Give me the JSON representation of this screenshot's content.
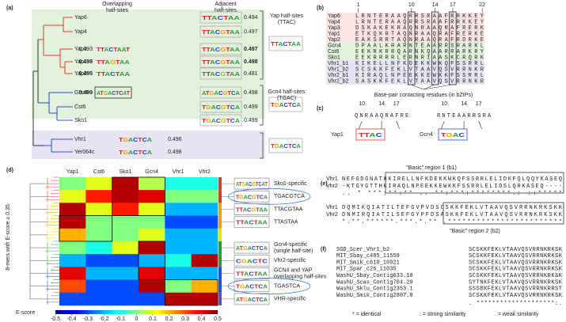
{
  "panel_a": {
    "label": "(a)",
    "headers": [
      [
        "Overlapping",
        "half-sites"
      ],
      [
        "Adjacent",
        "half-sites"
      ]
    ],
    "rows": [
      {
        "name": "Yap6",
        "adjacent_logo": "TTACTAA",
        "adjacent_score": 0.494
      },
      {
        "name": "Yap4",
        "adjacent_logo": "TTACGTAA",
        "adjacent_score": 0.497
      },
      {
        "name": "Yap3",
        "overlap_logo": "TTACTAAT",
        "overlap_score": 0.493,
        "adjacent_logo": "TTACGTAA",
        "adjacent_score": 0.497
      },
      {
        "name": "Yap1",
        "overlap_logo": "TTAGTAA",
        "overlap_score": 0.498,
        "adjacent_logo": "TTACGTAA",
        "adjacent_score": 0.498
      },
      {
        "name": "Yap2",
        "overlap_logo": "TTACTAA",
        "overlap_score": 0.495,
        "adjacent_logo": "TTACGTAA",
        "adjacent_score": 0.481
      },
      {
        "name": "Gcn4",
        "overlap_logo": "ATGACTCAT",
        "overlap_score": 0.499,
        "adjacent_logo": "ATGACGTCA",
        "adjacent_score": 0.498
      },
      {
        "name": "Cst6",
        "adjacent_logo": "TGACGTCA",
        "adjacent_score": 0.499
      },
      {
        "name": "Sko1",
        "adjacent_logo": "TGACGTCA",
        "adjacent_score": 0.499
      },
      {
        "name": "Vhr1",
        "overlap_logo": "TGACTCA",
        "overlap_score": 0.496
      },
      {
        "name": "Yer064c",
        "overlap_logo": "TGACTCA",
        "overlap_score": 0.498
      }
    ],
    "half_sites": [
      {
        "lines": [
          "Yap half-sites",
          "(TTAC)"
        ],
        "logo": "TTACTAA"
      },
      {
        "lines": [
          "Gcn4 half-sites",
          "(TGAC)"
        ],
        "logo": "TGACTCA"
      },
      {
        "logo": "TGACTCA"
      }
    ]
  },
  "panel_b": {
    "label": "(b)",
    "positions": [
      "1",
      "10",
      "14",
      "17",
      "22"
    ],
    "rows": [
      {
        "name": "Yap6",
        "seq": "LRNTERAAQRRSRAAFRRKKEY"
      },
      {
        "name": "Yap4",
        "seq": "LRNTERAAQRRSRAAFRRKKEY"
      },
      {
        "name": "Yap3",
        "seq": "DSKAKEKRAQNRAAQRAFRERK"
      },
      {
        "name": "Yap1",
        "seq": "ETKQKRTAQNRAAQRAFRERKE"
      },
      {
        "name": "Yap2",
        "seq": "EAKSRRTAQNRAAQRAFRDRKE"
      },
      {
        "name": "Gcn4",
        "seq": "DPAALKRARNTEAARRSRARKL"
      },
      {
        "name": "Cst6",
        "seq": "EEKRKRRQARNKQAARRARKRY"
      },
      {
        "name": "Sko1",
        "seq": "EEKRRRRLERNRIAASKCRQRK"
      },
      {
        "name": "Vhr1_b1",
        "seq": "KIKELLNFKDEKKWKQFSSRRL"
      },
      {
        "name": "Vhr1_b2",
        "seq": "SCSKKFEKLVTAAVQSVRRNKR"
      },
      {
        "name": "Vhr2_b1",
        "seq": "KIRAQLNPEEKKEWKKFSSRRL"
      },
      {
        "name": "Vhr2_b2",
        "seq": "SASKKFEKLVTAAVQSVRRNKR"
      }
    ],
    "caption": "Base-pair contacting residues (in bZIPs)"
  },
  "panel_c": {
    "label": "(c)",
    "proteins": [
      {
        "name": "Yap1",
        "positions": [
          "10",
          "14",
          "17"
        ],
        "seq": "QNRAAQRAFRE",
        "site": "TTAC"
      },
      {
        "name": "Gcn4",
        "positions": [
          "10",
          "14",
          "17"
        ],
        "seq": "RNTEAARRSRA",
        "site": "TGAC"
      }
    ]
  },
  "panel_d": {
    "label": "(d)",
    "y_label": "8-mers with E-score ≥ 0.35",
    "columns": [
      "Yap1",
      "Cst6",
      "Sko1",
      "Gcn4",
      "Vhr1",
      "Vhr2"
    ],
    "rows": [
      {
        "values": [
          0.0,
          0.1,
          0.45,
          0.05,
          -0.1,
          -0.1
        ],
        "label": [
          "Sko1-specific"
        ],
        "logo": "ATGACGTCAT"
      },
      {
        "values": [
          0.1,
          0.35,
          0.45,
          0.4,
          0.0,
          0.0
        ],
        "label": [
          "TGACGTCA"
        ],
        "label_color": "#1f3fd0",
        "logo": "TGACGTCA"
      },
      {
        "values": [
          0.45,
          0.1,
          0.35,
          0.1,
          -0.2,
          -0.2
        ],
        "label": [
          "TTACGTAA"
        ],
        "label_color": "#e02020",
        "logo": "TTACGTAA"
      },
      {
        "values": [
          0.45,
          0.0,
          0.0,
          0.0,
          -0.3,
          -0.3
        ],
        "label": [
          "TTASTAA"
        ],
        "label_color": "#e02020",
        "logo": "TTACTAA"
      },
      {
        "values": [
          0.2,
          0.0,
          0.0,
          0.1,
          -0.2,
          -0.2
        ]
      },
      {
        "values": [
          0.0,
          -0.1,
          0.1,
          0.45,
          -0.2,
          -0.2
        ],
        "label": [
          "Gcn4-specific",
          "(single half-site)"
        ],
        "logo": "ATGACTCA"
      },
      {
        "values": [
          -0.2,
          -0.3,
          -0.3,
          -0.2,
          -0.1,
          0.45
        ],
        "label": [
          "Vhr2-specific"
        ],
        "logo": "CGACTC"
      },
      {
        "values": [
          0.4,
          -0.2,
          -0.2,
          0.4,
          -0.2,
          -0.2
        ],
        "label": [
          "GCN4 and YAP",
          "overlapping half-sites"
        ],
        "label_color": "#1f3fd0",
        "logo": "TTACTAA"
      },
      {
        "values": [
          0.3,
          -0.3,
          -0.3,
          0.45,
          0.0,
          0.2
        ],
        "label": [
          "TGASTCA"
        ],
        "label_color": "#1f3fd0",
        "logo": "TGACTCA"
      },
      {
        "values": [
          -0.3,
          -0.3,
          -0.3,
          -0.3,
          0.45,
          0.45
        ],
        "label": [
          "VHR-specific"
        ],
        "logo": "ATGACTCA"
      }
    ],
    "colorbar_label": "E-score",
    "clim": [
      -0.5,
      0.5
    ],
    "colorbar_ticks": [
      -0.5,
      -0.4,
      -0.3,
      -0.2,
      -0.1,
      0,
      0.1,
      0.2,
      0.3,
      0.4,
      0.5
    ]
  },
  "panel_e": {
    "label": "(e)",
    "region1": "\"Basic\" region 1 (b1)",
    "region2": "\"Basic\" region 2 (b2)",
    "blocks": [
      [
        [
          "Vhr1",
          "NEFGDGNATHKIRELLNFKDEKKWKQFSSRRLELIDKFQLQQYKASEQ"
        ],
        [
          "Vhr2",
          "-KTGYGTTHKIRAQLNPEEKKEWKKFSSRRLELIDSLQRKASEQ----"
        ],
        [
          "",
          " ..  * ***:**:** ..  **:***:********.:  ::*****"
        ]
      ],
      [
        [
          "Vhr1",
          "DQMIKQIATILTEFGVPVDSCSKKFEKLVTAAVQSVRRNKRKSKK"
        ],
        [
          "Vhr2",
          "DNMIRQIATILSEFGYPFDSASKKFEKLVTAAVQSVRRNKRKSKK"
        ],
        [
          "",
          "*.**.******.***.*.** .************************"
        ]
      ]
    ]
  },
  "panel_f": {
    "label": "(f)",
    "rows": [
      [
        "SGD_Scer_Vhr1_b2",
        "SCSKKFEKLVTAAVQSVRRNKRKSK"
      ],
      [
        "MIT_Sbay_c485_11559",
        "SCSKKFEKLVTAAVQSVRRNKRKSK"
      ],
      [
        "MIT_Smik_c610_10921",
        "SCSKKFEKLVTAAVQSVRRNKRKSK"
      ],
      [
        "MIT_Spar_c26_11035",
        "SCSKKFEKLVTAAVQSVRRNKRKSK"
      ],
      [
        "WashU_Sbay_Contig633.10",
        "SCSKKFEKLVTAAVQSVRRNKRKSK"
      ],
      [
        "WashU_Scas_Contig704.29",
        "SYTNKFEKLVTAAVQSVRRNKRKSK"
      ],
      [
        "WashU_Sklu_Contig2353.1",
        "SSSBKFEKLVTAAVQSVRRNKRRST"
      ],
      [
        "WashU_Smik_Contig2807.8",
        "SCSKKFEKLVTAAVQSVRRNKRKSK"
      ]
    ],
    "match": " .  ********************:.",
    "legend": [
      "* = identical",
      ": = strong similarity",
      ". = weak similarity"
    ]
  }
}
